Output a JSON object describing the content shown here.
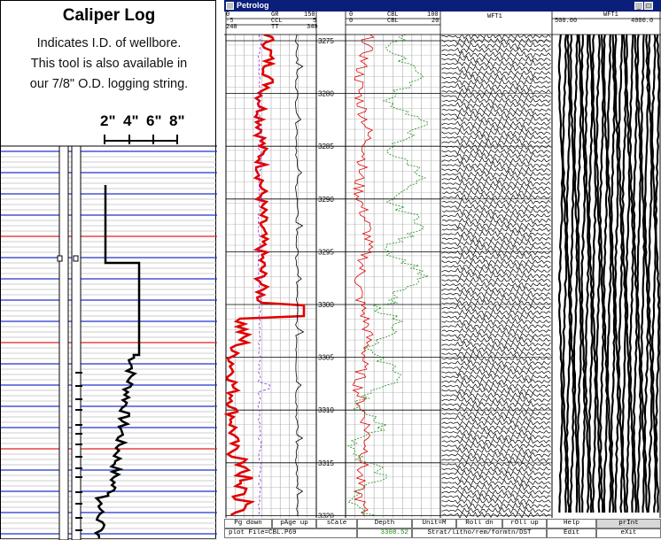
{
  "caliper": {
    "title": "Caliper Log",
    "desc_lines": [
      "Indicates I.D. of wellbore.",
      "This tool is also available in",
      "our 7/8\" O.D. logging string."
    ],
    "scale_labels": [
      "2\"",
      "4\"",
      "6\"",
      "8\""
    ]
  },
  "petrolog": {
    "window_title": "Petrolog",
    "track1": {
      "row1": {
        "left": "0",
        "mid": "GR",
        "right": "150"
      },
      "row2": {
        "left": "-5",
        "mid": "CCL",
        "right": "5"
      },
      "row3": {
        "left": "240",
        "mid": "TT",
        "right": "340"
      }
    },
    "track3": {
      "row1": {
        "left": "0",
        "mid": "CBL",
        "right": "100"
      },
      "row2": {
        "left": "0",
        "mid": "CBL",
        "right": "20"
      }
    },
    "track4": {
      "label": "WFT1"
    },
    "track5": {
      "label": "WFT1",
      "left": "500.00",
      "right": "4000.0"
    },
    "depths": [
      "3275",
      "3280",
      "3285",
      "3290",
      "3295",
      "3300",
      "3305",
      "3310",
      "3315",
      "3320"
    ],
    "menu_row1": [
      "Pg down",
      "pAge up",
      "sCale",
      "Depth",
      "Unit=M",
      "Roll dn",
      "rOll up",
      "Help",
      "prInt"
    ],
    "status": {
      "plot_file": "plot File=CBL.P69",
      "depth_value": "3308.52",
      "mode": "Strat/litho/rem/formtn/DST",
      "edit": "Edit",
      "exit": "eXit"
    },
    "colors": {
      "title_bar": "#0a1f7a",
      "gr_curve": "#e00000",
      "tt_curve": "#8a2be2",
      "cbl100": "#e00000",
      "cbl20": "#1a8a1a"
    }
  }
}
